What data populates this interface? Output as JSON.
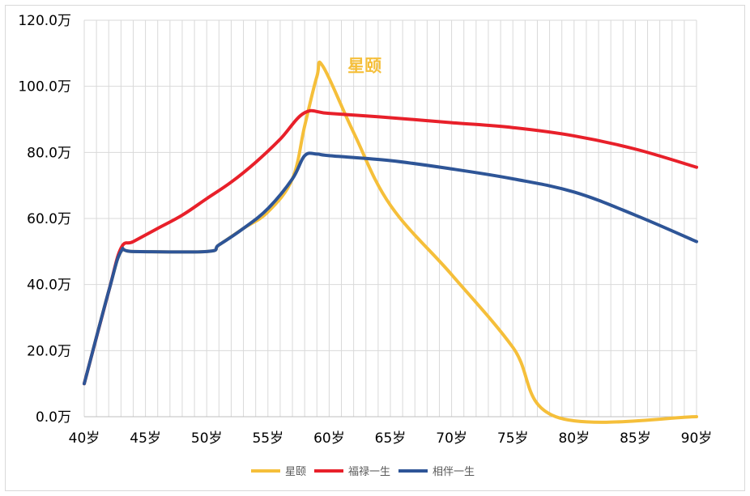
{
  "chart_data": {
    "type": "line",
    "title": "",
    "xlabel": "",
    "ylabel": "",
    "x_range": [
      40,
      90
    ],
    "ylim": [
      0,
      120
    ],
    "y_ticks": [
      "0.0万",
      "20.0万",
      "40.0万",
      "60.0万",
      "80.0万",
      "100.0万",
      "120.0万"
    ],
    "y_tick_values": [
      0,
      20,
      40,
      60,
      80,
      100,
      120
    ],
    "x_ticks": [
      "40岁",
      "45岁",
      "50岁",
      "55岁",
      "60岁",
      "65岁",
      "70岁",
      "75岁",
      "80岁",
      "85岁",
      "90岁"
    ],
    "x_tick_values": [
      40,
      45,
      50,
      55,
      60,
      65,
      70,
      75,
      80,
      85,
      90
    ],
    "grid": true,
    "legend_position": "bottom",
    "series": [
      {
        "name": "星颐",
        "color": "#F5BF3A",
        "points": [
          [
            40,
            10
          ],
          [
            42,
            38
          ],
          [
            43,
            50
          ],
          [
            44,
            50
          ],
          [
            50,
            50
          ],
          [
            51,
            52
          ],
          [
            53,
            57
          ],
          [
            55,
            62
          ],
          [
            57,
            72
          ],
          [
            58,
            88
          ],
          [
            59,
            103
          ],
          [
            59.5,
            106
          ],
          [
            62,
            86
          ],
          [
            65,
            64
          ],
          [
            70,
            43
          ],
          [
            75,
            21
          ],
          [
            78.5,
            0
          ],
          [
            90,
            0
          ]
        ]
      },
      {
        "name": "福禄一生",
        "color": "#E8202A",
        "points": [
          [
            40,
            10
          ],
          [
            42,
            38
          ],
          [
            43,
            51
          ],
          [
            44,
            53
          ],
          [
            46,
            57
          ],
          [
            48,
            61
          ],
          [
            50,
            66
          ],
          [
            52,
            71
          ],
          [
            54,
            77
          ],
          [
            56,
            84
          ],
          [
            58,
            92
          ],
          [
            60,
            91.8
          ],
          [
            65,
            90.5
          ],
          [
            70,
            89
          ],
          [
            75,
            87.5
          ],
          [
            80,
            85
          ],
          [
            85,
            81
          ],
          [
            90,
            75.5
          ]
        ]
      },
      {
        "name": "相伴一生",
        "color": "#2E5597",
        "points": [
          [
            40,
            10
          ],
          [
            42,
            38
          ],
          [
            43,
            50
          ],
          [
            44,
            50
          ],
          [
            50,
            50
          ],
          [
            51,
            52
          ],
          [
            53,
            57
          ],
          [
            55,
            63
          ],
          [
            57,
            72
          ],
          [
            58,
            79
          ],
          [
            59,
            79.5
          ],
          [
            60,
            79
          ],
          [
            65,
            77.5
          ],
          [
            70,
            75
          ],
          [
            75,
            72
          ],
          [
            80,
            68
          ],
          [
            85,
            61
          ],
          [
            90,
            53
          ]
        ]
      }
    ],
    "annotations": [
      {
        "text": "星颐",
        "x": 61.5,
        "y": 104.5,
        "color": "#F5BF3A"
      }
    ]
  }
}
